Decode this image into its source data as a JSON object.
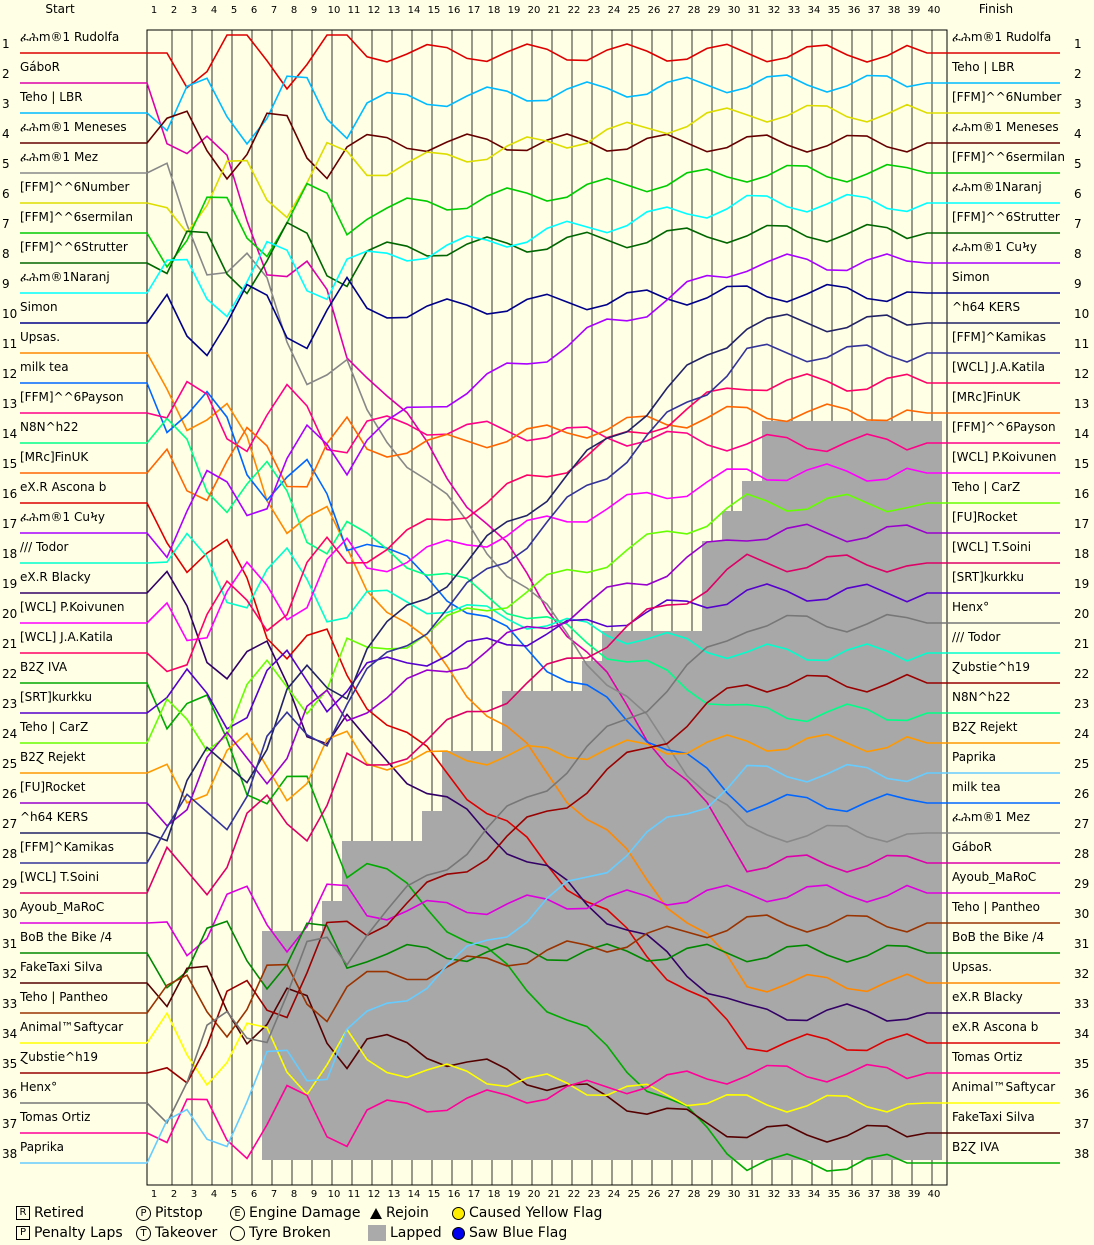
{
  "header": {
    "start": "Start",
    "finish": "Finish"
  },
  "laps": 40,
  "start_order": [
    "ፈሕm®1 Rudolfa",
    "GáboR",
    "Teho | LBR",
    "ፈሕm®1 Meneses",
    "ፈሕm®1 Mez",
    "[FFM]^^6Number",
    "[FFM]^^6sermilan",
    "[FFM]^^6Strutter",
    "ፈሕm®1Naranj",
    "Simon",
    "Upsas.",
    "milk tea",
    "[FFM]^^6Payson",
    "N8N^h22",
    "[MRc]FinUK",
    "eX.R Ascona b",
    "ፈሕm®1 CuϞy",
    "/// Todor",
    "eX.R Blacky",
    "[WCL] P.Koivunen",
    "[WCL] J.A.Katila",
    "B2Ɀ IVA",
    "[SRT]kurkku",
    "Teho | CarZ",
    "B2Ɀ Rejekt",
    "[FU]Rocket",
    "^h64 KERS",
    "[FFM]^Kamikas",
    "[WCL] T.Soini",
    "Ayoub_MaRoC",
    "BoB the Bike /4",
    "FakeTaxi Silva",
    "Teho | Pantheo",
    "Animal™Saftycar",
    "Ɀubstie^h19",
    "Henx°",
    "Tomas Ortiz",
    "Paprika"
  ],
  "finish_order": [
    "ፈሕm®1 Rudolfa",
    "Teho | LBR",
    "[FFM]^^6Number",
    "ፈሕm®1 Meneses",
    "[FFM]^^6sermilan",
    "ፈሕm®1Naranj",
    "[FFM]^^6Strutter",
    "ፈሕm®1 CuϞy",
    "Simon",
    "^h64 KERS",
    "[FFM]^Kamikas",
    "[WCL] J.A.Katila",
    "[MRc]FinUK",
    "[FFM]^^6Payson",
    "[WCL] P.Koivunen",
    "Teho | CarZ",
    "[FU]Rocket",
    "[WCL] T.Soini",
    "[SRT]kurkku",
    "Henx°",
    "/// Todor",
    "Ɀubstie^h19",
    "N8N^h22",
    "B2Ɀ Rejekt",
    "Paprika",
    "milk tea",
    "ፈሕm®1 Mez",
    "GáboR",
    "Ayoub_MaRoC",
    "Teho | Pantheo",
    "BoB the Bike /4",
    "Upsas.",
    "eX.R Blacky",
    "eX.R Ascona b",
    "Tomas Ortiz",
    "Animal™Saftycar",
    "FakeTaxi Silva",
    "B2Ɀ IVA"
  ],
  "finish_suffix": [
    "1",
    "2",
    "3",
    "4",
    "5",
    "6",
    "7",
    "8",
    "9",
    "10",
    "11",
    "12",
    "13",
    "14",
    "15",
    "16",
    "17",
    "18",
    "19",
    "20",
    "21",
    "22",
    "23",
    "24",
    "25",
    "26",
    "27",
    "28",
    "29",
    "30",
    "31",
    "32",
    "33",
    "34",
    "35",
    "36",
    "37",
    "38"
  ],
  "finish_suffix_note": "",
  "colors": [
    "#dd0000",
    "#dd00aa",
    "#00bbff",
    "#660000",
    "#888888",
    "#dddd00",
    "#00cc00",
    "#006600",
    "#00ffff",
    "#000088",
    "#ff8800",
    "#0066ff",
    "#ff0088",
    "#00ff88",
    "#ff6600",
    "#dd0000",
    "#aa00ff",
    "#00ffcc",
    "#330066",
    "#ff00ff",
    "#ff0066",
    "#00aa00",
    "#5500cc",
    "#66ff00",
    "#ff9900",
    "#9900cc",
    "#222266",
    "#333399",
    "#dd0066",
    "#dd00dd",
    "#008800",
    "#550000",
    "#993300",
    "#ffff00",
    "#990000",
    "#777777",
    "#ff0099",
    "#66ccff"
  ],
  "chart_data": {
    "type": "line",
    "title": "",
    "xlabel": "",
    "ylabel": "",
    "x": [
      1,
      2,
      3,
      4,
      5,
      6,
      7,
      8,
      9,
      10,
      11,
      12,
      13,
      14,
      15,
      16,
      17,
      18,
      19,
      20,
      21,
      22,
      23,
      24,
      25,
      26,
      27,
      28,
      29,
      30,
      31,
      32,
      33,
      34,
      35,
      36,
      37,
      38,
      39,
      40
    ],
    "ylim": [
      1,
      38
    ],
    "leader_laps": 40,
    "lapped_region_start_lap": 7,
    "lapped_positions_by_lap": [
      38,
      38,
      38,
      38,
      38,
      38,
      31,
      31,
      31,
      30,
      28,
      28,
      28,
      28,
      27,
      25,
      25,
      25,
      23,
      23,
      23,
      23,
      22,
      21,
      21,
      21,
      21,
      21,
      18,
      17,
      16,
      14,
      14,
      14,
      14,
      14,
      14,
      14,
      14,
      14
    ]
  },
  "legend": {
    "retired": "Retired",
    "penalty": "Penalty Laps",
    "pitstop": "Pitstop",
    "takeover": "Takeover",
    "engine": "Engine Damage",
    "tyre": "Tyre Broken",
    "rejoin": "Rejoin",
    "lapped": "Lapped",
    "yellow": "Caused Yellow Flag",
    "blue": "Saw Blue Flag"
  }
}
